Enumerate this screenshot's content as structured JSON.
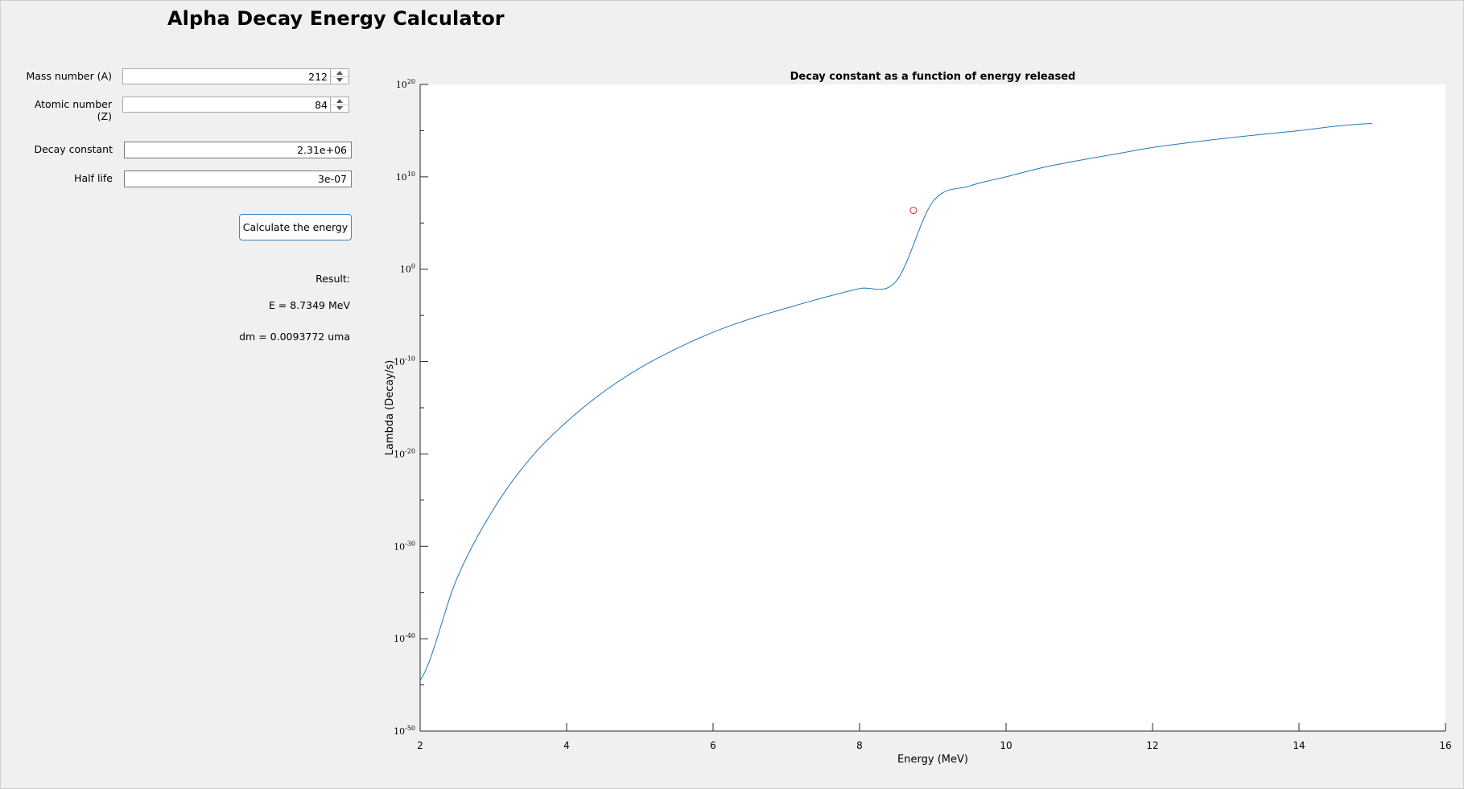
{
  "app": {
    "title": "Alpha Decay Energy Calculator"
  },
  "inputs": {
    "mass_number": {
      "label": "Mass number (A)",
      "value": "212"
    },
    "atomic_number": {
      "label": "Atomic number (Z)",
      "value": "84"
    },
    "decay_constant": {
      "label": "Decay constant",
      "value": "2.31e+06"
    },
    "half_life": {
      "label": "Half life",
      "value": "3e-07"
    }
  },
  "calculate_button": {
    "label": "Calculate the energy"
  },
  "results": {
    "header": "Result:",
    "energy": "E = 8.7349 MeV",
    "mass_defect": "dm = 0.0093772 uma"
  },
  "colors": {
    "curve": "#1f77b4",
    "marker": "#d62728",
    "button_border": "#3a86c4"
  },
  "chart_data": {
    "type": "line",
    "title": "Decay constant as a function of energy released",
    "xlabel": "Energy (MeV)",
    "ylabel": "Lambda (Decay/s)",
    "xlim": [
      2,
      16
    ],
    "xticks": [
      "2",
      "4",
      "6",
      "8",
      "10",
      "12",
      "14",
      "16"
    ],
    "y_scale": "log",
    "ylim": [
      1e-50,
      1e+20
    ],
    "yticks": [
      {
        "base": "10",
        "exp": "20"
      },
      {
        "base": "10",
        "exp": "10"
      },
      {
        "base": "10",
        "exp": "0"
      },
      {
        "base": "10",
        "exp": "-10"
      },
      {
        "base": "10",
        "exp": "-20"
      },
      {
        "base": "10",
        "exp": "-30"
      },
      {
        "base": "10",
        "exp": "-40"
      },
      {
        "base": "10",
        "exp": "-50"
      }
    ],
    "grid": false,
    "series": [
      {
        "x": [
          2,
          2.5,
          3,
          3.5,
          4,
          4.5,
          5,
          5.5,
          6,
          6.5,
          7,
          7.5,
          8,
          8.5,
          9,
          9.5,
          10,
          10.5,
          11,
          11.5,
          12,
          12.5,
          13,
          13.5,
          14,
          14.5,
          15
        ],
        "y": [
          3e-45,
          3e-34,
          1e-26,
          3e-21,
          3e-17,
          5e-14,
          2e-11,
          2.5e-09,
          1.5e-07,
          4e-06,
          6e-05,
          0.0008,
          0.008,
          0.05,
          20000000.0,
          1000000000.0,
          10000000000.0,
          100000000000.0,
          600000000000.0,
          3000000000000.0,
          15000000000000.0,
          50000000000000.0,
          150000000000000.0,
          400000000000000.0,
          1000000000000000.0,
          3000000000000000.0,
          6000000000000000.0
        ]
      }
    ],
    "marker": {
      "x": 8.7349,
      "y": 2310000.0
    }
  }
}
